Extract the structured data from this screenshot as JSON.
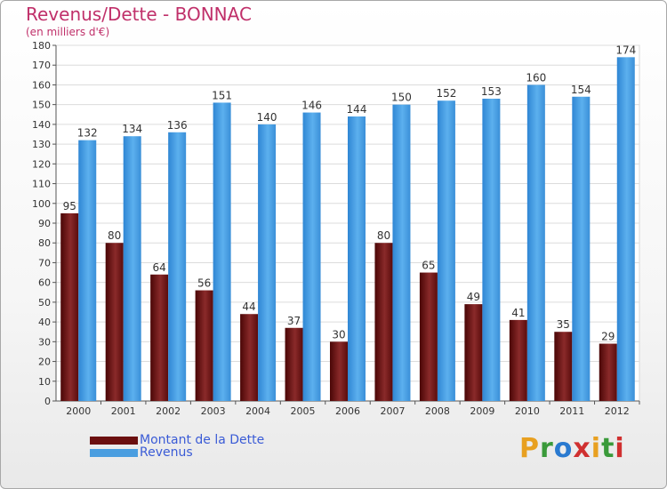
{
  "header": {
    "title": "Revenus/Dette - BONNAC",
    "subtitle": "(en milliers d'€)"
  },
  "chart_data": {
    "type": "bar",
    "categories": [
      "2000",
      "2001",
      "2002",
      "2003",
      "2004",
      "2005",
      "2006",
      "2007",
      "2008",
      "2009",
      "2010",
      "2011",
      "2012"
    ],
    "series": [
      {
        "name": "Montant de la Dette",
        "values": [
          95,
          80,
          64,
          56,
          44,
          37,
          30,
          80,
          65,
          49,
          41,
          35,
          29
        ],
        "color": "#7a1f1f"
      },
      {
        "name": "Revenus",
        "values": [
          132,
          134,
          136,
          151,
          140,
          146,
          144,
          150,
          152,
          153,
          160,
          154,
          174
        ],
        "color": "#4a9ee0"
      }
    ],
    "ylim": [
      0,
      180
    ],
    "yticks": [
      0,
      10,
      20,
      30,
      40,
      50,
      60,
      70,
      80,
      90,
      100,
      110,
      120,
      130,
      140,
      150,
      160,
      170,
      180
    ],
    "grid": true,
    "legend_position": "bottom-left",
    "data_labels": true
  },
  "legend": {
    "debt_label": "Montant de la Dette",
    "revenue_label": "Revenus",
    "debt_color": "#6b0f0f",
    "revenue_color": "#4a9ee0"
  },
  "logo": {
    "letters": [
      "P",
      "r",
      "o",
      "x",
      "i",
      "t",
      "i"
    ],
    "colors": [
      "#e8a020",
      "#3a9a3a",
      "#2a7ad0",
      "#d03030",
      "#e8a020",
      "#3a9a3a",
      "#d03030"
    ]
  }
}
